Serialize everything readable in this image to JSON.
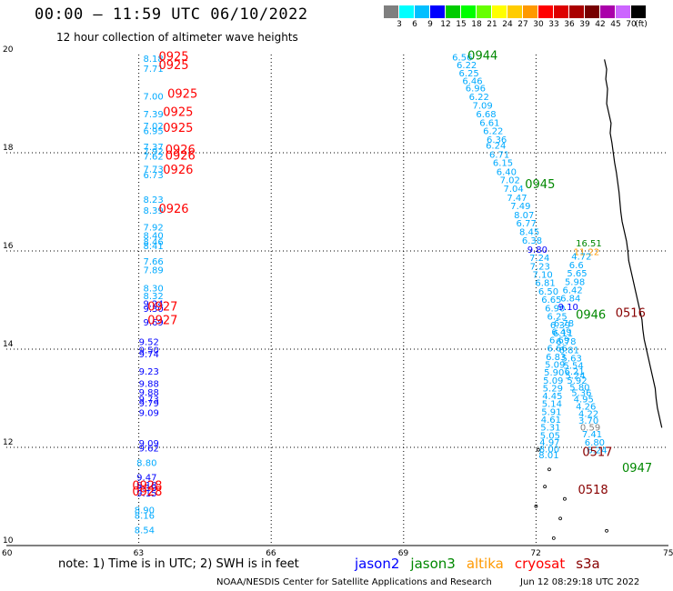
{
  "header": {
    "title": "00:00 – 11:59 UTC 06/10/2022",
    "subtitle": "12 hour collection of altimeter wave heights"
  },
  "colorbar": {
    "colors": [
      "#7f7f7f",
      "#00ffff",
      "#00bfff",
      "#0000ff",
      "#00cc00",
      "#00ff00",
      "#66ff00",
      "#ffff00",
      "#ffcc00",
      "#ff9900",
      "#ff0000",
      "#dd0000",
      "#aa0000",
      "#770000",
      "#aa00aa",
      "#cc66ff",
      "#000000"
    ],
    "labels": [
      "3",
      "6",
      "9",
      "12",
      "15",
      "18",
      "21",
      "24",
      "27",
      "30",
      "33",
      "36",
      "39",
      "42",
      "45",
      "70",
      "(ft)"
    ]
  },
  "axes": {
    "x_ticks": [
      "60",
      "63",
      "66",
      "69",
      "72",
      "75"
    ],
    "y_ticks": [
      "20",
      "18",
      "16",
      "14",
      "12",
      "10"
    ],
    "x_range": [
      60,
      75
    ],
    "y_range": [
      10,
      20
    ],
    "grid": true
  },
  "satellite_colors": {
    "jason2": "#0000ff",
    "jason3": "#008800",
    "altika": "#ff9900",
    "cryosat": "#ff0000",
    "s3a": "#880000",
    "low": "#00aaff",
    "gray": "#808080"
  },
  "tracks": [
    {
      "id": "track-a",
      "points": [
        {
          "lon": 63.1,
          "lat": 19.85,
          "v": "8.18",
          "c": "low"
        },
        {
          "lon": 63.1,
          "lat": 19.65,
          "v": "7.71",
          "c": "low"
        },
        {
          "lon": 63.1,
          "lat": 19.08,
          "v": "7.00",
          "c": "low"
        },
        {
          "lon": 63.1,
          "lat": 18.72,
          "v": "7.39",
          "c": "low"
        },
        {
          "lon": 63.1,
          "lat": 18.48,
          "v": "7.02",
          "c": "low"
        },
        {
          "lon": 63.1,
          "lat": 18.38,
          "v": "6.95",
          "c": "low"
        },
        {
          "lon": 63.1,
          "lat": 18.06,
          "v": "7.37",
          "c": "low"
        },
        {
          "lon": 63.1,
          "lat": 17.96,
          "v": "7.92",
          "c": "low"
        },
        {
          "lon": 63.1,
          "lat": 17.86,
          "v": "7.62",
          "c": "low"
        },
        {
          "lon": 63.1,
          "lat": 17.6,
          "v": "7.73",
          "c": "low"
        },
        {
          "lon": 63.1,
          "lat": 17.48,
          "v": "6.73",
          "c": "low"
        },
        {
          "lon": 63.1,
          "lat": 16.98,
          "v": "8.23",
          "c": "low"
        },
        {
          "lon": 63.1,
          "lat": 16.76,
          "v": "8.39",
          "c": "low"
        },
        {
          "lon": 63.1,
          "lat": 16.42,
          "v": "7.92",
          "c": "low"
        },
        {
          "lon": 63.1,
          "lat": 16.25,
          "v": "8.40",
          "c": "low"
        },
        {
          "lon": 63.1,
          "lat": 16.12,
          "v": "8.46",
          "c": "low"
        },
        {
          "lon": 63.1,
          "lat": 16.04,
          "v": "8.41",
          "c": "low"
        },
        {
          "lon": 63.1,
          "lat": 15.72,
          "v": "7.66",
          "c": "low"
        },
        {
          "lon": 63.1,
          "lat": 15.55,
          "v": "7.89",
          "c": "low"
        },
        {
          "lon": 63.1,
          "lat": 15.18,
          "v": "8.30",
          "c": "low"
        },
        {
          "lon": 63.1,
          "lat": 15.02,
          "v": "8.32",
          "c": "low"
        },
        {
          "lon": 63.1,
          "lat": 14.86,
          "v": "9.24",
          "c": "jason2"
        },
        {
          "lon": 63.1,
          "lat": 14.76,
          "v": "9.30",
          "c": "jason2"
        },
        {
          "lon": 63.1,
          "lat": 14.48,
          "v": "9.69",
          "c": "jason2"
        },
        {
          "lon": 63.0,
          "lat": 14.08,
          "v": "9.52",
          "c": "jason2"
        },
        {
          "lon": 63.0,
          "lat": 13.92,
          "v": "9.50",
          "c": "jason2"
        },
        {
          "lon": 63.0,
          "lat": 13.83,
          "v": "9.74",
          "c": "jason2"
        },
        {
          "lon": 63.0,
          "lat": 13.48,
          "v": "9.23",
          "c": "jason2"
        },
        {
          "lon": 63.0,
          "lat": 13.23,
          "v": "9.88",
          "c": "jason2"
        },
        {
          "lon": 63.0,
          "lat": 13.06,
          "v": "9.88",
          "c": "jason2"
        },
        {
          "lon": 63.0,
          "lat": 12.92,
          "v": "9.73",
          "c": "jason2"
        },
        {
          "lon": 63.0,
          "lat": 12.83,
          "v": "9.79",
          "c": "jason2"
        },
        {
          "lon": 63.0,
          "lat": 12.64,
          "v": "9.09",
          "c": "jason2"
        },
        {
          "lon": 63.0,
          "lat": 12.02,
          "v": "9.09",
          "c": "jason2"
        },
        {
          "lon": 63.0,
          "lat": 11.92,
          "v": "9.62",
          "c": "jason2"
        },
        {
          "lon": 62.95,
          "lat": 11.62,
          "v": "8.80",
          "c": "low"
        },
        {
          "lon": 62.95,
          "lat": 11.32,
          "v": "9.47",
          "c": "jason2"
        },
        {
          "lon": 62.95,
          "lat": 11.17,
          "v": "9.18",
          "c": "jason2"
        },
        {
          "lon": 62.95,
          "lat": 11.11,
          "v": "9.19",
          "c": "jason2"
        },
        {
          "lon": 62.95,
          "lat": 11.0,
          "v": "9.15",
          "c": "jason2"
        },
        {
          "lon": 62.9,
          "lat": 10.66,
          "v": "8.90",
          "c": "low"
        },
        {
          "lon": 62.9,
          "lat": 10.55,
          "v": "8.16",
          "c": "low"
        },
        {
          "lon": 62.9,
          "lat": 10.25,
          "v": "8.54",
          "c": "low"
        }
      ]
    },
    {
      "id": "track-b",
      "points": [
        {
          "lon": 70.1,
          "lat": 19.88,
          "v": "6.56",
          "c": "low"
        },
        {
          "lon": 70.2,
          "lat": 19.72,
          "v": "6.22",
          "c": "low"
        },
        {
          "lon": 70.25,
          "lat": 19.56,
          "v": "6.25",
          "c": "low"
        },
        {
          "lon": 70.33,
          "lat": 19.4,
          "v": "6.46",
          "c": "low"
        },
        {
          "lon": 70.4,
          "lat": 19.25,
          "v": "6.96",
          "c": "low"
        },
        {
          "lon": 70.48,
          "lat": 19.07,
          "v": "6.22",
          "c": "low"
        },
        {
          "lon": 70.56,
          "lat": 18.9,
          "v": "7.09",
          "c": "low"
        },
        {
          "lon": 70.64,
          "lat": 18.72,
          "v": "6.68",
          "c": "low"
        },
        {
          "lon": 70.72,
          "lat": 18.55,
          "v": "6.61",
          "c": "low"
        },
        {
          "lon": 70.8,
          "lat": 18.38,
          "v": "6.22",
          "c": "low"
        },
        {
          "lon": 70.88,
          "lat": 18.2,
          "v": "6.36",
          "c": "low"
        },
        {
          "lon": 70.86,
          "lat": 18.08,
          "v": "6.24",
          "c": "low"
        },
        {
          "lon": 70.94,
          "lat": 17.9,
          "v": "6.71",
          "c": "low"
        },
        {
          "lon": 71.02,
          "lat": 17.73,
          "v": "6.15",
          "c": "low"
        },
        {
          "lon": 71.1,
          "lat": 17.55,
          "v": "6.40",
          "c": "low"
        },
        {
          "lon": 71.18,
          "lat": 17.38,
          "v": "7.02",
          "c": "low"
        },
        {
          "lon": 71.26,
          "lat": 17.2,
          "v": "7.04",
          "c": "low"
        },
        {
          "lon": 71.34,
          "lat": 17.02,
          "v": "7.47",
          "c": "low"
        },
        {
          "lon": 71.42,
          "lat": 16.85,
          "v": "7.49",
          "c": "low"
        },
        {
          "lon": 71.5,
          "lat": 16.67,
          "v": "8.07",
          "c": "low"
        },
        {
          "lon": 71.55,
          "lat": 16.5,
          "v": "6.77",
          "c": "low"
        },
        {
          "lon": 71.62,
          "lat": 16.32,
          "v": "8.45",
          "c": "low"
        },
        {
          "lon": 71.68,
          "lat": 16.15,
          "v": "6.38",
          "c": "low"
        },
        {
          "lon": 71.8,
          "lat": 15.96,
          "v": "9.80",
          "c": "jason2"
        },
        {
          "lon": 71.85,
          "lat": 15.8,
          "v": "7.24",
          "c": "low"
        },
        {
          "lon": 71.86,
          "lat": 15.62,
          "v": "7.23",
          "c": "low"
        },
        {
          "lon": 71.92,
          "lat": 15.45,
          "v": "7.10",
          "c": "low"
        },
        {
          "lon": 71.98,
          "lat": 15.29,
          "v": "6.81",
          "c": "low"
        },
        {
          "lon": 72.05,
          "lat": 15.11,
          "v": "6.50",
          "c": "low"
        },
        {
          "lon": 72.12,
          "lat": 14.94,
          "v": "6.65",
          "c": "low"
        },
        {
          "lon": 72.2,
          "lat": 14.77,
          "v": "6.90",
          "c": "low"
        },
        {
          "lon": 72.25,
          "lat": 14.6,
          "v": "6.25",
          "c": "low"
        },
        {
          "lon": 72.32,
          "lat": 14.43,
          "v": "6.39",
          "c": "low"
        },
        {
          "lon": 72.38,
          "lat": 14.26,
          "v": "6.11",
          "c": "low"
        },
        {
          "lon": 72.45,
          "lat": 14.09,
          "v": "6.78",
          "c": "low"
        },
        {
          "lon": 72.52,
          "lat": 13.92,
          "v": "6.81",
          "c": "low"
        },
        {
          "lon": 72.58,
          "lat": 13.75,
          "v": "5.63",
          "c": "low"
        },
        {
          "lon": 72.62,
          "lat": 13.6,
          "v": "5.54",
          "c": "low"
        },
        {
          "lon": 72.64,
          "lat": 13.48,
          "v": "6.21",
          "c": "low"
        },
        {
          "lon": 72.66,
          "lat": 13.4,
          "v": "5.24",
          "c": "low"
        },
        {
          "lon": 72.7,
          "lat": 13.3,
          "v": "5.92",
          "c": "low"
        },
        {
          "lon": 72.76,
          "lat": 13.16,
          "v": "5.80",
          "c": "low"
        },
        {
          "lon": 72.8,
          "lat": 13.05,
          "v": "5.36",
          "c": "low"
        },
        {
          "lon": 72.85,
          "lat": 12.92,
          "v": "4.95",
          "c": "low"
        },
        {
          "lon": 72.9,
          "lat": 12.77,
          "v": "4.26",
          "c": "low"
        },
        {
          "lon": 72.96,
          "lat": 12.62,
          "v": "4.22",
          "c": "low"
        },
        {
          "lon": 72.96,
          "lat": 12.48,
          "v": "3.70",
          "c": "low"
        },
        {
          "lon": 73.0,
          "lat": 12.34,
          "v": "0.59",
          "c": "gray"
        },
        {
          "lon": 73.04,
          "lat": 12.2,
          "v": "7.41",
          "c": "low"
        },
        {
          "lon": 73.1,
          "lat": 12.04,
          "v": "6.80",
          "c": "low"
        },
        {
          "lon": 73.15,
          "lat": 11.88,
          "v": "6.24",
          "c": "low"
        }
      ]
    },
    {
      "id": "track-c",
      "points": [
        {
          "lon": 72.9,
          "lat": 16.09,
          "v": "16.51",
          "c": "jason3"
        },
        {
          "lon": 72.85,
          "lat": 15.92,
          "v": "11.22",
          "c": "altika"
        },
        {
          "lon": 72.8,
          "lat": 15.82,
          "v": "4.72",
          "c": "low"
        },
        {
          "lon": 72.75,
          "lat": 15.65,
          "v": "6.6",
          "c": "low"
        },
        {
          "lon": 72.7,
          "lat": 15.48,
          "v": "5.65",
          "c": "low"
        },
        {
          "lon": 72.65,
          "lat": 15.31,
          "v": "5.98",
          "c": "low"
        },
        {
          "lon": 72.6,
          "lat": 15.14,
          "v": "6.42",
          "c": "low"
        },
        {
          "lon": 72.55,
          "lat": 14.97,
          "v": "6.84",
          "c": "low"
        },
        {
          "lon": 72.5,
          "lat": 14.8,
          "v": "9.10",
          "c": "jason2"
        },
        {
          "lon": 72.4,
          "lat": 14.46,
          "v": "6.78",
          "c": "low"
        },
        {
          "lon": 72.35,
          "lat": 14.29,
          "v": "6.49",
          "c": "low"
        },
        {
          "lon": 72.3,
          "lat": 14.12,
          "v": "6.69",
          "c": "low"
        },
        {
          "lon": 72.25,
          "lat": 13.95,
          "v": "6.66",
          "c": "low"
        },
        {
          "lon": 72.22,
          "lat": 13.78,
          "v": "6.83",
          "c": "low"
        },
        {
          "lon": 72.2,
          "lat": 13.62,
          "v": "5.09",
          "c": "low"
        },
        {
          "lon": 72.18,
          "lat": 13.46,
          "v": "5.90",
          "c": "low"
        },
        {
          "lon": 72.16,
          "lat": 13.3,
          "v": "5.09",
          "c": "low"
        },
        {
          "lon": 72.15,
          "lat": 13.14,
          "v": "5.29",
          "c": "low"
        },
        {
          "lon": 72.14,
          "lat": 12.98,
          "v": "4.45",
          "c": "low"
        },
        {
          "lon": 72.13,
          "lat": 12.82,
          "v": "5.14",
          "c": "low"
        },
        {
          "lon": 72.12,
          "lat": 12.66,
          "v": "5.91",
          "c": "low"
        },
        {
          "lon": 72.11,
          "lat": 12.5,
          "v": "4.61",
          "c": "low"
        },
        {
          "lon": 72.1,
          "lat": 12.34,
          "v": "5.31",
          "c": "low"
        },
        {
          "lon": 72.09,
          "lat": 12.18,
          "v": "5.05",
          "c": "low"
        },
        {
          "lon": 72.08,
          "lat": 12.04,
          "v": "4.97",
          "c": "low"
        },
        {
          "lon": 72.07,
          "lat": 11.9,
          "v": "8.00",
          "c": "low"
        },
        {
          "lon": 72.06,
          "lat": 11.78,
          "v": "8.01",
          "c": "low"
        }
      ]
    }
  ],
  "time_labels": [
    {
      "lon": 63.45,
      "lat": 19.88,
      "t": "0925",
      "c": "cryosat"
    },
    {
      "lon": 63.45,
      "lat": 19.7,
      "t": "0925",
      "c": "cryosat"
    },
    {
      "lon": 63.65,
      "lat": 19.12,
      "t": "0925",
      "c": "cryosat"
    },
    {
      "lon": 63.55,
      "lat": 18.75,
      "t": "0925",
      "c": "cryosat"
    },
    {
      "lon": 63.55,
      "lat": 18.43,
      "t": "0925",
      "c": "cryosat"
    },
    {
      "lon": 63.6,
      "lat": 17.98,
      "t": "0926",
      "c": "cryosat"
    },
    {
      "lon": 63.6,
      "lat": 17.86,
      "t": "0926",
      "c": "cryosat"
    },
    {
      "lon": 63.55,
      "lat": 17.57,
      "t": "0926",
      "c": "cryosat"
    },
    {
      "lon": 63.45,
      "lat": 16.78,
      "t": "0926",
      "c": "cryosat"
    },
    {
      "lon": 63.2,
      "lat": 14.79,
      "t": "0927",
      "c": "cryosat"
    },
    {
      "lon": 63.2,
      "lat": 14.51,
      "t": "0927",
      "c": "cryosat"
    },
    {
      "lon": 62.85,
      "lat": 11.14,
      "t": "0928",
      "c": "cryosat"
    },
    {
      "lon": 62.85,
      "lat": 11.02,
      "t": "0928",
      "c": "cryosat"
    },
    {
      "lon": 70.45,
      "lat": 19.9,
      "t": "0944",
      "c": "jason3"
    },
    {
      "lon": 71.75,
      "lat": 17.28,
      "t": "0945",
      "c": "jason3"
    },
    {
      "lon": 72.9,
      "lat": 14.62,
      "t": "0946",
      "c": "jason3"
    },
    {
      "lon": 73.8,
      "lat": 14.66,
      "t": "0516",
      "c": "s3a"
    },
    {
      "lon": 73.95,
      "lat": 11.5,
      "t": "0947",
      "c": "jason3"
    },
    {
      "lon": 73.05,
      "lat": 11.82,
      "t": "0517",
      "c": "s3a"
    },
    {
      "lon": 72.95,
      "lat": 11.06,
      "t": "0518",
      "c": "s3a"
    }
  ],
  "note": "note:  1) Time is in UTC;  2) SWH is in feet",
  "legend": [
    {
      "name": "jason2",
      "color": "#0000ff"
    },
    {
      "name": "jason3",
      "color": "#008800"
    },
    {
      "name": "altika",
      "color": "#ff9900"
    },
    {
      "name": "cryosat",
      "color": "#ff0000"
    },
    {
      "name": "s3a",
      "color": "#880000"
    }
  ],
  "footer": {
    "org": "NOAA/NESDIS Center for Satellite Applications and Research",
    "timestamp": "Jun 12 08:29:18 UTC 2022"
  }
}
